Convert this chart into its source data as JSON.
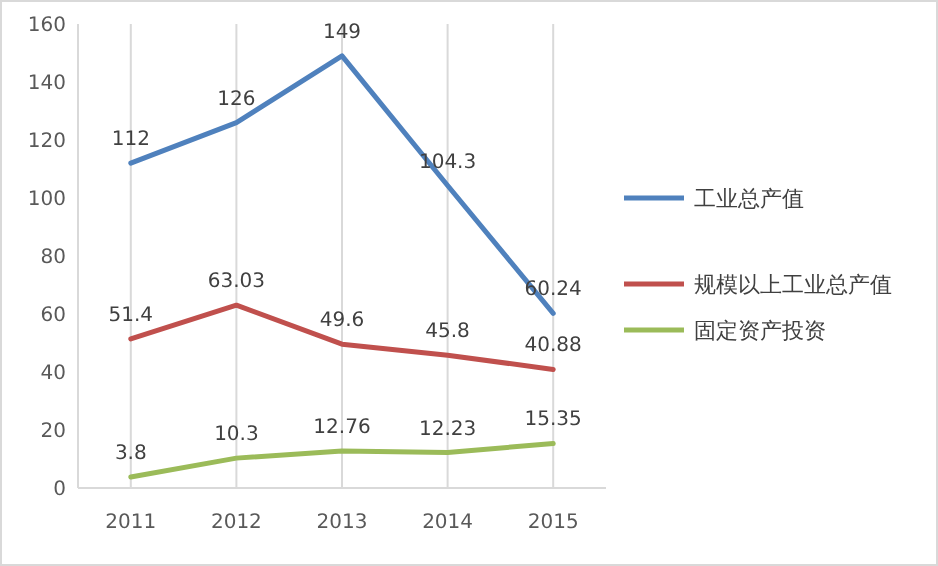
{
  "chart_data": {
    "type": "line",
    "categories": [
      "2011",
      "2012",
      "2013",
      "2014",
      "2015"
    ],
    "series": [
      {
        "name": "工业总产值",
        "color": "#4f81bd",
        "values": [
          112,
          126,
          149,
          104.3,
          60.24
        ]
      },
      {
        "name": "规模以上工业总产值",
        "color": "#c0504d",
        "values": [
          51.4,
          63.03,
          49.6,
          45.8,
          40.88
        ]
      },
      {
        "name": "固定资产投资",
        "color": "#9bbb59",
        "values": [
          3.8,
          10.3,
          12.76,
          12.23,
          15.35
        ]
      }
    ],
    "ylim": [
      0,
      160
    ],
    "yticks": [
      0,
      20,
      40,
      60,
      80,
      100,
      120,
      140,
      160
    ],
    "grid": "x",
    "legend": "right",
    "data_labels": true,
    "marker": "none",
    "line_style": "solid"
  }
}
